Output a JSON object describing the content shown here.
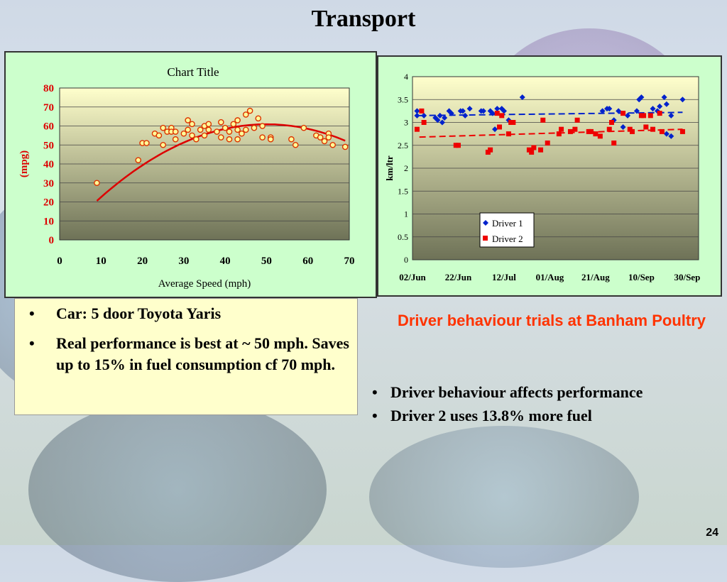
{
  "slide": {
    "title": "Transport",
    "page_number": "24",
    "left_bullets": [
      "Car:  5 door Toyota Yaris",
      "Real performance is best at ~ 50 mph.   Saves  up to 15% in fuel consumption  cf 70 mph."
    ],
    "right_heading": "Driver behaviour trials at Banham Poultry",
    "right_bullets": [
      "Driver behaviour affects performance",
      "Driver 2 uses 13.8% more fuel"
    ]
  },
  "colors": {
    "accent": "#dd0000",
    "driver1": "#0022cc",
    "driver2": "#ee0000",
    "heading": "#ff3300"
  },
  "chart_data": [
    {
      "type": "scatter",
      "title": "Chart Title",
      "xlabel": "Average Speed (mph)",
      "ylabel": "(mpg)",
      "xlim": [
        0,
        70
      ],
      "ylim": [
        0,
        80
      ],
      "xticks": [
        0,
        10,
        20,
        30,
        40,
        50,
        60,
        70
      ],
      "yticks": [
        0,
        10,
        20,
        30,
        40,
        50,
        60,
        70,
        80
      ],
      "grid": true,
      "points": [
        [
          9,
          30
        ],
        [
          19,
          42
        ],
        [
          20,
          51
        ],
        [
          21,
          51
        ],
        [
          23,
          56
        ],
        [
          24,
          55
        ],
        [
          25,
          59
        ],
        [
          25,
          50
        ],
        [
          26,
          57
        ],
        [
          27,
          59
        ],
        [
          27,
          57
        ],
        [
          28,
          53
        ],
        [
          28,
          57
        ],
        [
          30,
          56
        ],
        [
          31,
          63
        ],
        [
          31,
          58
        ],
        [
          32,
          61
        ],
        [
          32,
          55
        ],
        [
          33,
          53
        ],
        [
          34,
          58
        ],
        [
          35,
          60
        ],
        [
          35,
          55
        ],
        [
          36,
          61
        ],
        [
          36,
          58
        ],
        [
          38,
          57
        ],
        [
          39,
          62
        ],
        [
          39,
          54
        ],
        [
          40,
          59
        ],
        [
          41,
          57
        ],
        [
          41,
          53
        ],
        [
          42,
          61
        ],
        [
          43,
          63
        ],
        [
          43,
          58
        ],
        [
          43,
          53
        ],
        [
          44,
          56
        ],
        [
          45,
          58
        ],
        [
          45,
          66
        ],
        [
          46,
          68
        ],
        [
          47,
          59
        ],
        [
          48,
          64
        ],
        [
          49,
          60
        ],
        [
          49,
          54
        ],
        [
          51,
          54
        ],
        [
          51,
          53
        ],
        [
          56,
          53
        ],
        [
          57,
          50
        ],
        [
          59,
          59
        ],
        [
          62,
          55
        ],
        [
          63,
          54
        ],
        [
          64,
          52
        ],
        [
          65,
          56
        ],
        [
          65,
          54
        ],
        [
          66,
          50
        ],
        [
          69,
          49
        ]
      ],
      "trend": {
        "type": "poly2",
        "x_range": [
          9,
          69
        ],
        "coeffs": [
          0.9,
          2.4,
          -0.024
        ]
      }
    },
    {
      "type": "scatter",
      "title": "",
      "xlabel": "",
      "ylabel": "km/ltr",
      "ylim": [
        0,
        4
      ],
      "yticks": [
        0,
        0.5,
        1,
        1.5,
        2,
        2.5,
        3,
        3.5,
        4
      ],
      "xlim": [
        "02/Jun",
        "05/Oct"
      ],
      "xticks": [
        "02/Jun",
        "22/Jun",
        "12/Jul",
        "01/Aug",
        "21/Aug",
        "10/Sep",
        "30/Sep"
      ],
      "grid": true,
      "legend": "bottom-left",
      "series": [
        {
          "name": "Driver 1",
          "marker": "diamond",
          "points": [
            [
              "04/Jun",
              3.25
            ],
            [
              "04/Jun",
              3.15
            ],
            [
              "07/Jun",
              3.15
            ],
            [
              "12/Jun",
              3.1
            ],
            [
              "13/Jun",
              3.05
            ],
            [
              "14/Jun",
              3.15
            ],
            [
              "15/Jun",
              3.0
            ],
            [
              "16/Jun",
              3.1
            ],
            [
              "18/Jun",
              3.25
            ],
            [
              "19/Jun",
              3.2
            ],
            [
              "23/Jun",
              3.25
            ],
            [
              "24/Jun",
              3.25
            ],
            [
              "25/Jun",
              3.15
            ],
            [
              "27/Jun",
              3.3
            ],
            [
              "02/Jul",
              3.25
            ],
            [
              "03/Jul",
              3.25
            ],
            [
              "06/Jul",
              3.25
            ],
            [
              "07/Jul",
              3.2
            ],
            [
              "08/Jul",
              2.85
            ],
            [
              "09/Jul",
              3.3
            ],
            [
              "11/Jul",
              3.3
            ],
            [
              "12/Jul",
              3.25
            ],
            [
              "14/Jul",
              3.05
            ],
            [
              "20/Jul",
              3.55
            ],
            [
              "24/Aug",
              3.25
            ],
            [
              "26/Aug",
              3.3
            ],
            [
              "27/Aug",
              3.3
            ],
            [
              "29/Aug",
              3.05
            ],
            [
              "31/Aug",
              3.25
            ],
            [
              "02/Sep",
              2.9
            ],
            [
              "04/Sep",
              3.15
            ],
            [
              "08/Sep",
              3.25
            ],
            [
              "09/Sep",
              3.5
            ],
            [
              "10/Sep",
              3.55
            ],
            [
              "15/Sep",
              3.3
            ],
            [
              "17/Sep",
              3.25
            ],
            [
              "18/Sep",
              3.35
            ],
            [
              "20/Sep",
              3.55
            ],
            [
              "21/Sep",
              2.75
            ],
            [
              "21/Sep",
              3.4
            ],
            [
              "23/Sep",
              3.15
            ],
            [
              "23/Sep",
              2.7
            ],
            [
              "28/Sep",
              3.5
            ]
          ]
        },
        {
          "name": "Driver 2",
          "marker": "square",
          "points": [
            [
              "04/Jun",
              2.85
            ],
            [
              "06/Jun",
              3.25
            ],
            [
              "07/Jun",
              3.0
            ],
            [
              "21/Jun",
              2.5
            ],
            [
              "22/Jun",
              2.5
            ],
            [
              "05/Jul",
              2.35
            ],
            [
              "06/Jul",
              2.4
            ],
            [
              "09/Jul",
              3.2
            ],
            [
              "10/Jul",
              2.9
            ],
            [
              "11/Jul",
              3.15
            ],
            [
              "14/Jul",
              2.75
            ],
            [
              "15/Jul",
              3.0
            ],
            [
              "16/Jul",
              3.0
            ],
            [
              "23/Jul",
              2.4
            ],
            [
              "24/Jul",
              2.35
            ],
            [
              "25/Jul",
              2.45
            ],
            [
              "28/Jul",
              2.4
            ],
            [
              "29/Jul",
              3.05
            ],
            [
              "31/Jul",
              2.55
            ],
            [
              "05/Aug",
              2.75
            ],
            [
              "06/Aug",
              2.85
            ],
            [
              "10/Aug",
              2.8
            ],
            [
              "12/Aug",
              2.85
            ],
            [
              "13/Aug",
              3.05
            ],
            [
              "18/Aug",
              2.8
            ],
            [
              "19/Aug",
              2.8
            ],
            [
              "21/Aug",
              2.75
            ],
            [
              "23/Aug",
              2.7
            ],
            [
              "27/Aug",
              2.85
            ],
            [
              "28/Aug",
              3.0
            ],
            [
              "29/Aug",
              2.55
            ],
            [
              "02/Sep",
              3.2
            ],
            [
              "05/Sep",
              2.85
            ],
            [
              "06/Sep",
              2.8
            ],
            [
              "10/Sep",
              3.15
            ],
            [
              "11/Sep",
              3.15
            ],
            [
              "12/Sep",
              2.9
            ],
            [
              "14/Sep",
              3.15
            ],
            [
              "15/Sep",
              2.85
            ],
            [
              "18/Sep",
              3.2
            ],
            [
              "19/Sep",
              2.8
            ],
            [
              "28/Sep",
              2.8
            ]
          ]
        }
      ],
      "trendlines": [
        {
          "series": "Driver 1",
          "type": "linear",
          "from": [
            "05/Jun",
            3.15
          ],
          "to": [
            "28/Sep",
            3.22
          ]
        },
        {
          "series": "Driver 2",
          "type": "linear",
          "from": [
            "05/Jun",
            2.68
          ],
          "to": [
            "28/Sep",
            2.85
          ]
        }
      ]
    }
  ]
}
